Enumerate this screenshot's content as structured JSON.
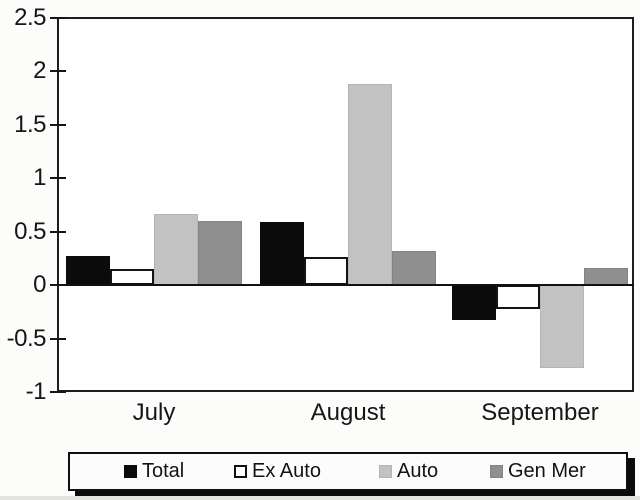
{
  "chart_data": {
    "type": "bar",
    "title": "",
    "xlabel": "",
    "ylabel": "",
    "categories": [
      "July",
      "August",
      "September"
    ],
    "series": [
      {
        "name": "Total",
        "color": "#0b0b0b",
        "border_color": "#0b0b0b",
        "outline_width": 1,
        "values": [
          0.27,
          0.59,
          -0.33
        ]
      },
      {
        "name": "Ex Auto",
        "color": "#ffffff",
        "border_color": "#141414",
        "outline_width": 2,
        "values": [
          0.15,
          0.26,
          -0.22
        ]
      },
      {
        "name": "Auto",
        "color": "#c2c2c2",
        "border_color": "#b5b5b5",
        "outline_width": 1,
        "values": [
          0.66,
          1.88,
          -0.78
        ]
      },
      {
        "name": "Gen Mer",
        "color": "#8f8f8f",
        "border_color": "#848484",
        "outline_width": 1,
        "values": [
          0.6,
          0.32,
          0.16
        ]
      }
    ],
    "ylim": [
      -1,
      2.5
    ],
    "yticks": [
      2.5,
      2,
      1.5,
      1,
      0.5,
      0,
      -0.5,
      -1
    ],
    "ytick_labels": [
      "2.5",
      "2",
      "1.5",
      "1",
      "0.5",
      "0",
      "-0.5",
      "-1"
    ],
    "grid": false,
    "legend_position": "bottom",
    "legend_labels": [
      "Total",
      "Ex Auto",
      "Auto",
      "Gen Mer"
    ],
    "axis_color": "#1d1d1d",
    "text_color": "#161616"
  }
}
